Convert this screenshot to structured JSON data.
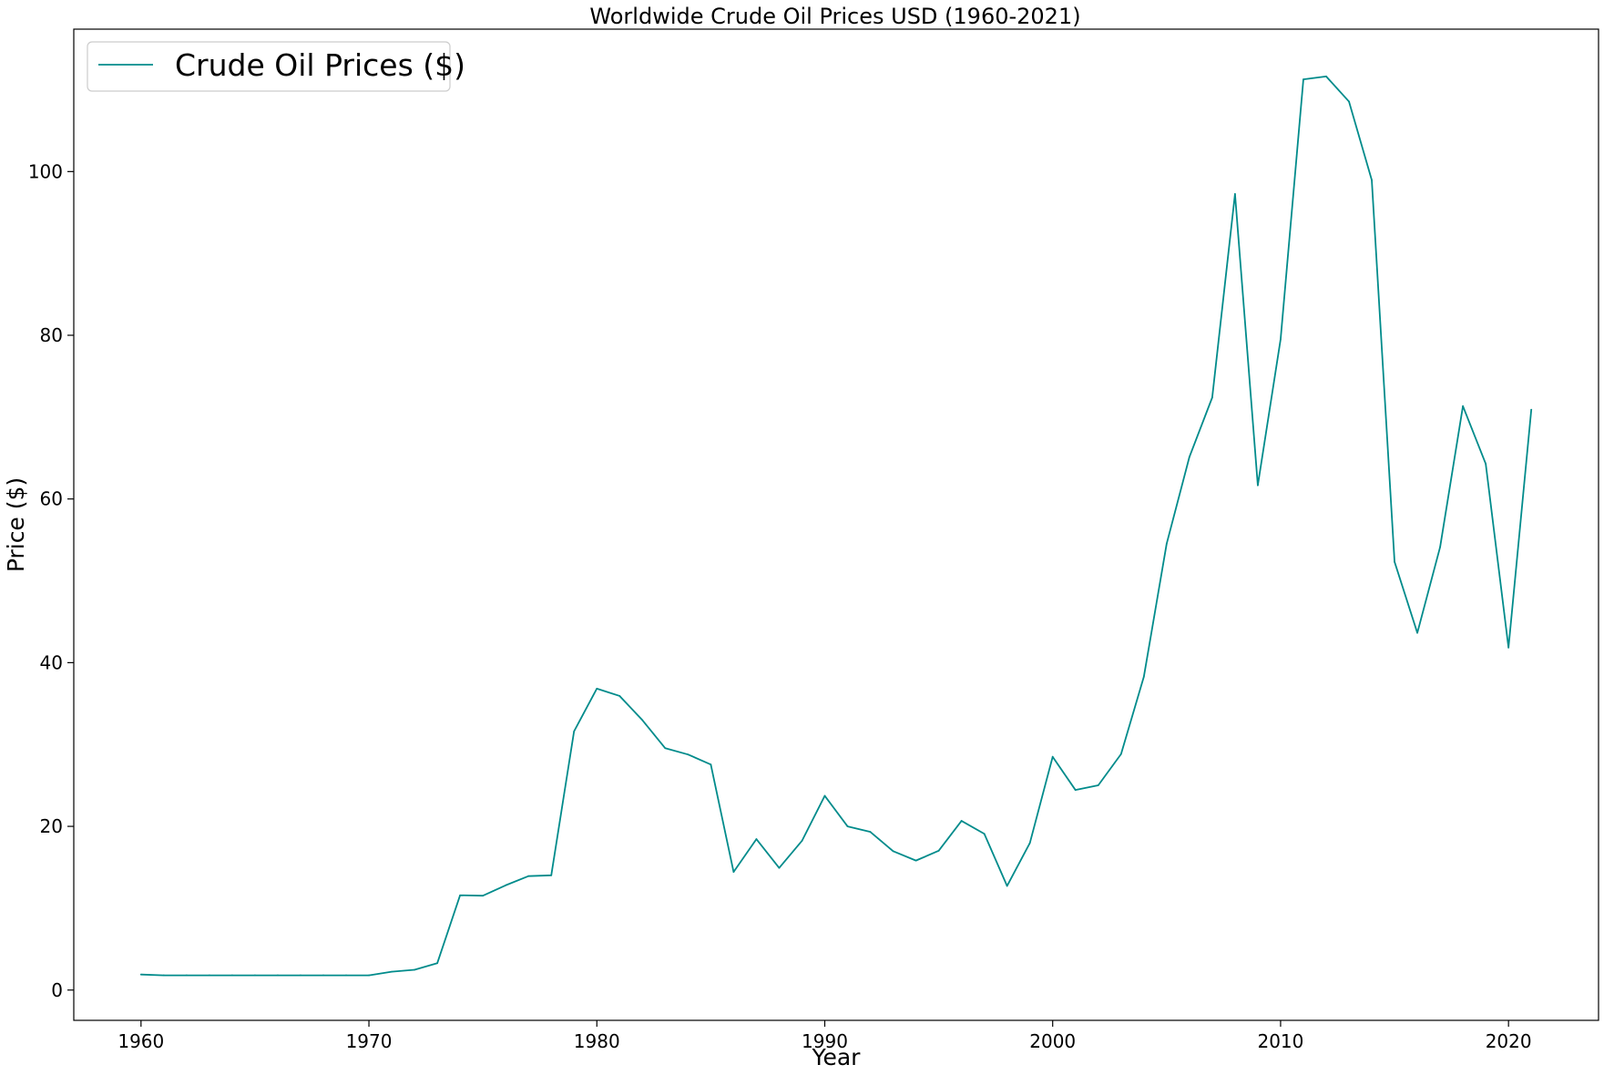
{
  "chart_data": {
    "type": "line",
    "title": "Worldwide Crude Oil Prices USD (1960-2021)",
    "xlabel": "Year",
    "ylabel": "Price ($)",
    "xlim": [
      1957.05,
      2023.95
    ],
    "ylim": [
      -3.7,
      117.4
    ],
    "xticks": [
      1960,
      1970,
      1980,
      1990,
      2000,
      2010,
      2020
    ],
    "yticks": [
      0,
      20,
      40,
      60,
      80,
      100
    ],
    "grid": false,
    "legend": {
      "placement": "upper-left",
      "entries": [
        "Crude Oil Prices ($)"
      ]
    },
    "series": [
      {
        "name": "Crude Oil Prices ($)",
        "color": "#008b8b",
        "x": [
          1960,
          1961,
          1962,
          1963,
          1964,
          1965,
          1966,
          1967,
          1968,
          1969,
          1970,
          1971,
          1972,
          1973,
          1974,
          1975,
          1976,
          1977,
          1978,
          1979,
          1980,
          1981,
          1982,
          1983,
          1984,
          1985,
          1986,
          1987,
          1988,
          1989,
          1990,
          1991,
          1992,
          1993,
          1994,
          1995,
          1996,
          1997,
          1998,
          1999,
          2000,
          2001,
          2002,
          2003,
          2004,
          2005,
          2006,
          2007,
          2008,
          2009,
          2010,
          2011,
          2012,
          2013,
          2014,
          2015,
          2016,
          2017,
          2018,
          2019,
          2020,
          2021
        ],
        "values": [
          1.9,
          1.8,
          1.8,
          1.8,
          1.8,
          1.8,
          1.8,
          1.8,
          1.8,
          1.8,
          1.8,
          2.24,
          2.48,
          3.29,
          11.58,
          11.53,
          12.8,
          13.92,
          14.02,
          31.61,
          36.83,
          35.93,
          32.97,
          29.55,
          28.78,
          27.56,
          14.43,
          18.44,
          14.92,
          18.23,
          23.73,
          20.0,
          19.32,
          16.97,
          15.82,
          17.02,
          20.67,
          19.09,
          12.72,
          17.97,
          28.5,
          24.44,
          25.02,
          28.83,
          38.27,
          54.52,
          65.14,
          72.39,
          97.26,
          61.67,
          79.5,
          111.26,
          111.63,
          108.56,
          98.97,
          52.32,
          43.64,
          54.13,
          71.34,
          64.3,
          41.84,
          70.91
        ]
      }
    ]
  }
}
